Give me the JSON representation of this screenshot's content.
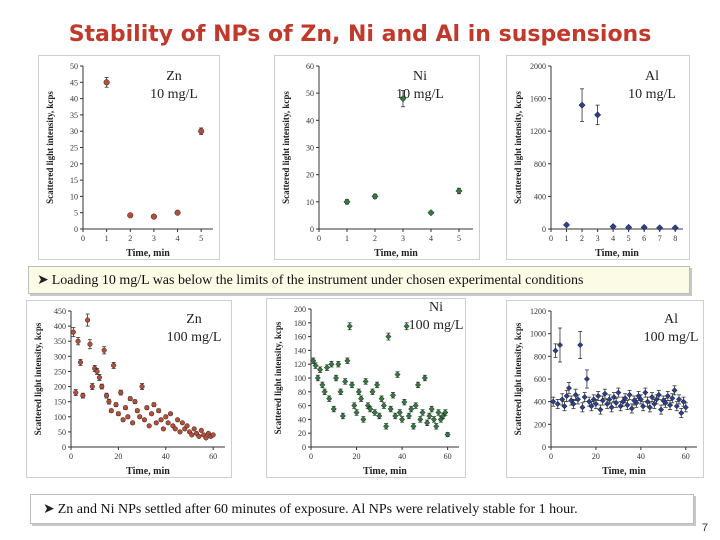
{
  "slide": {
    "title": "Stability of NPs of Zn, Ni and Al in suspensions",
    "note_top": "Loading 10 mg/L was below the limits of the instrument under chosen experimental conditions",
    "note_bottom": "Zn and Ni NPs settled after 60 minutes of exposure. Al NPs were relatively stable for 1 hour.",
    "page_number": "7"
  },
  "colors": {
    "zn_marker": "#b0503c",
    "ni_marker": "#2e7d3a",
    "al_marker": "#2b3f8f",
    "title": "#c0392b"
  },
  "chart_data": [
    {
      "type": "scatter",
      "id": "zn10",
      "label_line1": "Zn",
      "label_line2": "10 mg/L",
      "xlabel": "Time, min",
      "ylabel": "Scattered light intensity, kcps",
      "xlim": [
        0,
        5.5
      ],
      "ylim": [
        0,
        50
      ],
      "xticks": [
        0,
        1,
        2,
        3,
        4,
        5
      ],
      "yticks": [
        0,
        5,
        10,
        15,
        20,
        25,
        30,
        35,
        40,
        45,
        50
      ],
      "marker": "circle",
      "points": [
        {
          "x": 1.0,
          "y": 45,
          "err": 1.5
        },
        {
          "x": 2.0,
          "y": 4.2,
          "err": 0.4
        },
        {
          "x": 3.0,
          "y": 3.8,
          "err": 0.3
        },
        {
          "x": 4.0,
          "y": 5.0,
          "err": 0.4
        },
        {
          "x": 5.0,
          "y": 30,
          "err": 1.0
        }
      ]
    },
    {
      "type": "scatter",
      "id": "ni10",
      "label_line1": "Ni",
      "label_line2": "10 mg/L",
      "xlabel": "Time, min",
      "ylabel": "Scattered light intensity, kcps",
      "xlim": [
        0,
        5.5
      ],
      "ylim": [
        0,
        60
      ],
      "xticks": [
        0,
        1,
        2,
        3,
        4,
        5
      ],
      "yticks": [
        0,
        10,
        20,
        30,
        40,
        50,
        60
      ],
      "marker": "diamond",
      "points": [
        {
          "x": 1.0,
          "y": 10,
          "err": 0.8
        },
        {
          "x": 2.0,
          "y": 12,
          "err": 0.8
        },
        {
          "x": 3.0,
          "y": 48,
          "err": 3.0
        },
        {
          "x": 4.0,
          "y": 6,
          "err": 0.5
        },
        {
          "x": 5.0,
          "y": 14,
          "err": 1.0
        }
      ]
    },
    {
      "type": "scatter",
      "id": "al10",
      "label_line1": "Al",
      "label_line2": "10 mg/L",
      "xlabel": "Time, min",
      "ylabel": "Scattered light intensity, kcps",
      "xlim": [
        0,
        8.5
      ],
      "ylim": [
        0,
        2000
      ],
      "xticks": [
        0,
        1,
        2,
        3,
        4,
        5,
        6,
        7,
        8
      ],
      "yticks": [
        0,
        400,
        800,
        1200,
        1600,
        2000
      ],
      "marker": "diamond",
      "points": [
        {
          "x": 1.0,
          "y": 50,
          "err": 15
        },
        {
          "x": 2.0,
          "y": 1520,
          "err": 200
        },
        {
          "x": 3.0,
          "y": 1400,
          "err": 120
        },
        {
          "x": 4.0,
          "y": 30,
          "err": 10
        },
        {
          "x": 5.0,
          "y": 20,
          "err": 10
        },
        {
          "x": 6.0,
          "y": 20,
          "err": 10
        },
        {
          "x": 7.0,
          "y": 15,
          "err": 10
        },
        {
          "x": 8.0,
          "y": 15,
          "err": 10
        }
      ]
    },
    {
      "type": "scatter",
      "id": "zn100",
      "label_line1": "Zn",
      "label_line2": "100 mg/L",
      "xlabel": "Time, min",
      "ylabel": "Scattered light intensity, kcps",
      "xlim": [
        0,
        65
      ],
      "ylim": [
        0,
        450
      ],
      "xticks": [
        0,
        20,
        40,
        60
      ],
      "yticks": [
        0,
        50,
        100,
        150,
        200,
        250,
        300,
        350,
        400,
        450
      ],
      "marker": "circle",
      "points": [
        {
          "x": 1,
          "y": 380,
          "err": 15
        },
        {
          "x": 2,
          "y": 180,
          "err": 10
        },
        {
          "x": 3,
          "y": 350,
          "err": 12
        },
        {
          "x": 4,
          "y": 280,
          "err": 10
        },
        {
          "x": 5,
          "y": 170,
          "err": 8
        },
        {
          "x": 7,
          "y": 420,
          "err": 20
        },
        {
          "x": 8,
          "y": 340,
          "err": 15
        },
        {
          "x": 9,
          "y": 200,
          "err": 10
        },
        {
          "x": 10,
          "y": 260,
          "err": 10
        },
        {
          "x": 11,
          "y": 250,
          "err": 10
        },
        {
          "x": 12,
          "y": 230,
          "err": 10
        },
        {
          "x": 13,
          "y": 200,
          "err": 8
        },
        {
          "x": 14,
          "y": 320,
          "err": 12
        },
        {
          "x": 15,
          "y": 170,
          "err": 8
        },
        {
          "x": 16,
          "y": 150,
          "err": 8
        },
        {
          "x": 17,
          "y": 120,
          "err": 6
        },
        {
          "x": 18,
          "y": 270,
          "err": 10
        },
        {
          "x": 19,
          "y": 140,
          "err": 6
        },
        {
          "x": 20,
          "y": 110,
          "err": 6
        },
        {
          "x": 21,
          "y": 180,
          "err": 8
        },
        {
          "x": 22,
          "y": 90,
          "err": 5
        },
        {
          "x": 23,
          "y": 130,
          "err": 6
        },
        {
          "x": 24,
          "y": 100,
          "err": 5
        },
        {
          "x": 25,
          "y": 160,
          "err": 6
        },
        {
          "x": 26,
          "y": 80,
          "err": 5
        },
        {
          "x": 27,
          "y": 150,
          "err": 6
        },
        {
          "x": 28,
          "y": 120,
          "err": 6
        },
        {
          "x": 29,
          "y": 100,
          "err": 5
        },
        {
          "x": 30,
          "y": 200,
          "err": 10
        },
        {
          "x": 31,
          "y": 90,
          "err": 5
        },
        {
          "x": 32,
          "y": 130,
          "err": 6
        },
        {
          "x": 33,
          "y": 70,
          "err": 4
        },
        {
          "x": 34,
          "y": 110,
          "err": 5
        },
        {
          "x": 35,
          "y": 140,
          "err": 6
        },
        {
          "x": 36,
          "y": 80,
          "err": 4
        },
        {
          "x": 37,
          "y": 120,
          "err": 6
        },
        {
          "x": 38,
          "y": 90,
          "err": 5
        },
        {
          "x": 39,
          "y": 60,
          "err": 4
        },
        {
          "x": 40,
          "y": 100,
          "err": 5
        },
        {
          "x": 41,
          "y": 80,
          "err": 4
        },
        {
          "x": 42,
          "y": 110,
          "err": 5
        },
        {
          "x": 43,
          "y": 70,
          "err": 4
        },
        {
          "x": 44,
          "y": 60,
          "err": 4
        },
        {
          "x": 45,
          "y": 90,
          "err": 5
        },
        {
          "x": 46,
          "y": 50,
          "err": 4
        },
        {
          "x": 47,
          "y": 80,
          "err": 4
        },
        {
          "x": 48,
          "y": 60,
          "err": 4
        },
        {
          "x": 49,
          "y": 70,
          "err": 4
        },
        {
          "x": 50,
          "y": 50,
          "err": 3
        },
        {
          "x": 51,
          "y": 40,
          "err": 3
        },
        {
          "x": 52,
          "y": 60,
          "err": 3
        },
        {
          "x": 53,
          "y": 45,
          "err": 3
        },
        {
          "x": 54,
          "y": 35,
          "err": 3
        },
        {
          "x": 55,
          "y": 55,
          "err": 3
        },
        {
          "x": 56,
          "y": 40,
          "err": 3
        },
        {
          "x": 57,
          "y": 30,
          "err": 3
        },
        {
          "x": 58,
          "y": 45,
          "err": 3
        },
        {
          "x": 59,
          "y": 35,
          "err": 3
        },
        {
          "x": 60,
          "y": 40,
          "err": 3
        }
      ]
    },
    {
      "type": "scatter",
      "id": "ni100",
      "label_line1": "Ni",
      "label_line2": "100 mg/L",
      "xlabel": "Time, min",
      "ylabel": "Scattered light intensity, kcps",
      "xlim": [
        0,
        65
      ],
      "ylim": [
        0,
        200
      ],
      "xticks": [
        0,
        20,
        40,
        60
      ],
      "yticks": [
        0,
        20,
        40,
        60,
        80,
        100,
        120,
        140,
        160,
        180,
        200
      ],
      "marker": "diamond",
      "points": [
        {
          "x": 1,
          "y": 125,
          "err": 4
        },
        {
          "x": 2,
          "y": 118,
          "err": 4
        },
        {
          "x": 3,
          "y": 100,
          "err": 4
        },
        {
          "x": 4,
          "y": 112,
          "err": 4
        },
        {
          "x": 5,
          "y": 90,
          "err": 4
        },
        {
          "x": 6,
          "y": 80,
          "err": 4
        },
        {
          "x": 7,
          "y": 115,
          "err": 4
        },
        {
          "x": 8,
          "y": 70,
          "err": 4
        },
        {
          "x": 9,
          "y": 120,
          "err": 4
        },
        {
          "x": 10,
          "y": 55,
          "err": 4
        },
        {
          "x": 11,
          "y": 100,
          "err": 4
        },
        {
          "x": 12,
          "y": 120,
          "err": 4
        },
        {
          "x": 13,
          "y": 80,
          "err": 4
        },
        {
          "x": 14,
          "y": 45,
          "err": 4
        },
        {
          "x": 15,
          "y": 95,
          "err": 4
        },
        {
          "x": 16,
          "y": 125,
          "err": 4
        },
        {
          "x": 17,
          "y": 175,
          "err": 5
        },
        {
          "x": 18,
          "y": 90,
          "err": 4
        },
        {
          "x": 19,
          "y": 60,
          "err": 4
        },
        {
          "x": 20,
          "y": 50,
          "err": 4
        },
        {
          "x": 21,
          "y": 80,
          "err": 4
        },
        {
          "x": 22,
          "y": 70,
          "err": 4
        },
        {
          "x": 23,
          "y": 40,
          "err": 4
        },
        {
          "x": 24,
          "y": 95,
          "err": 4
        },
        {
          "x": 25,
          "y": 60,
          "err": 4
        },
        {
          "x": 26,
          "y": 55,
          "err": 4
        },
        {
          "x": 27,
          "y": 80,
          "err": 4
        },
        {
          "x": 28,
          "y": 50,
          "err": 4
        },
        {
          "x": 29,
          "y": 90,
          "err": 4
        },
        {
          "x": 30,
          "y": 45,
          "err": 4
        },
        {
          "x": 31,
          "y": 70,
          "err": 4
        },
        {
          "x": 32,
          "y": 60,
          "err": 4
        },
        {
          "x": 33,
          "y": 30,
          "err": 4
        },
        {
          "x": 34,
          "y": 160,
          "err": 5
        },
        {
          "x": 35,
          "y": 55,
          "err": 4
        },
        {
          "x": 36,
          "y": 75,
          "err": 4
        },
        {
          "x": 37,
          "y": 45,
          "err": 4
        },
        {
          "x": 38,
          "y": 105,
          "err": 4
        },
        {
          "x": 39,
          "y": 50,
          "err": 4
        },
        {
          "x": 40,
          "y": 40,
          "err": 4
        },
        {
          "x": 41,
          "y": 65,
          "err": 4
        },
        {
          "x": 42,
          "y": 175,
          "err": 5
        },
        {
          "x": 43,
          "y": 45,
          "err": 4
        },
        {
          "x": 44,
          "y": 55,
          "err": 4
        },
        {
          "x": 45,
          "y": 30,
          "err": 4
        },
        {
          "x": 46,
          "y": 60,
          "err": 4
        },
        {
          "x": 47,
          "y": 90,
          "err": 4
        },
        {
          "x": 48,
          "y": 40,
          "err": 4
        },
        {
          "x": 49,
          "y": 50,
          "err": 4
        },
        {
          "x": 50,
          "y": 100,
          "err": 4
        },
        {
          "x": 51,
          "y": 35,
          "err": 4
        },
        {
          "x": 52,
          "y": 45,
          "err": 4
        },
        {
          "x": 53,
          "y": 55,
          "err": 4
        },
        {
          "x": 54,
          "y": 40,
          "err": 4
        },
        {
          "x": 55,
          "y": 30,
          "err": 4
        },
        {
          "x": 56,
          "y": 50,
          "err": 4
        },
        {
          "x": 57,
          "y": 40,
          "err": 4
        },
        {
          "x": 58,
          "y": 45,
          "err": 4
        },
        {
          "x": 59,
          "y": 50,
          "err": 4
        },
        {
          "x": 60,
          "y": 18,
          "err": 3
        }
      ]
    },
    {
      "type": "scatter",
      "id": "al100",
      "label_line1": "Al",
      "label_line2": "100 mg/L",
      "xlabel": "Time, min",
      "ylabel": "Scattered light intensity, kcps",
      "xlim": [
        0,
        65
      ],
      "ylim": [
        0,
        1200
      ],
      "xticks": [
        0,
        20,
        40,
        60
      ],
      "yticks": [
        0,
        200,
        400,
        600,
        800,
        1000,
        1200
      ],
      "marker": "diamond",
      "points": [
        {
          "x": 1,
          "y": 400,
          "err": 40
        },
        {
          "x": 2,
          "y": 850,
          "err": 60
        },
        {
          "x": 3,
          "y": 380,
          "err": 40
        },
        {
          "x": 4,
          "y": 900,
          "err": 150
        },
        {
          "x": 5,
          "y": 420,
          "err": 50
        },
        {
          "x": 6,
          "y": 360,
          "err": 40
        },
        {
          "x": 7,
          "y": 450,
          "err": 50
        },
        {
          "x": 8,
          "y": 520,
          "err": 50
        },
        {
          "x": 9,
          "y": 410,
          "err": 40
        },
        {
          "x": 10,
          "y": 380,
          "err": 40
        },
        {
          "x": 11,
          "y": 460,
          "err": 50
        },
        {
          "x": 12,
          "y": 420,
          "err": 40
        },
        {
          "x": 13,
          "y": 900,
          "err": 120
        },
        {
          "x": 14,
          "y": 350,
          "err": 40
        },
        {
          "x": 15,
          "y": 440,
          "err": 40
        },
        {
          "x": 16,
          "y": 600,
          "err": 80
        },
        {
          "x": 17,
          "y": 400,
          "err": 40
        },
        {
          "x": 18,
          "y": 360,
          "err": 40
        },
        {
          "x": 19,
          "y": 420,
          "err": 40
        },
        {
          "x": 20,
          "y": 380,
          "err": 40
        },
        {
          "x": 21,
          "y": 450,
          "err": 40
        },
        {
          "x": 22,
          "y": 330,
          "err": 40
        },
        {
          "x": 23,
          "y": 410,
          "err": 40
        },
        {
          "x": 24,
          "y": 470,
          "err": 40
        },
        {
          "x": 25,
          "y": 380,
          "err": 40
        },
        {
          "x": 26,
          "y": 420,
          "err": 40
        },
        {
          "x": 27,
          "y": 350,
          "err": 40
        },
        {
          "x": 28,
          "y": 440,
          "err": 40
        },
        {
          "x": 29,
          "y": 390,
          "err": 40
        },
        {
          "x": 30,
          "y": 480,
          "err": 40
        },
        {
          "x": 31,
          "y": 360,
          "err": 40
        },
        {
          "x": 32,
          "y": 400,
          "err": 40
        },
        {
          "x": 33,
          "y": 430,
          "err": 40
        },
        {
          "x": 34,
          "y": 370,
          "err": 40
        },
        {
          "x": 35,
          "y": 460,
          "err": 40
        },
        {
          "x": 36,
          "y": 340,
          "err": 40
        },
        {
          "x": 37,
          "y": 410,
          "err": 40
        },
        {
          "x": 38,
          "y": 390,
          "err": 40
        },
        {
          "x": 39,
          "y": 450,
          "err": 40
        },
        {
          "x": 40,
          "y": 420,
          "err": 40
        },
        {
          "x": 41,
          "y": 360,
          "err": 40
        },
        {
          "x": 42,
          "y": 480,
          "err": 40
        },
        {
          "x": 43,
          "y": 400,
          "err": 40
        },
        {
          "x": 44,
          "y": 350,
          "err": 40
        },
        {
          "x": 45,
          "y": 440,
          "err": 40
        },
        {
          "x": 46,
          "y": 380,
          "err": 40
        },
        {
          "x": 47,
          "y": 420,
          "err": 40
        },
        {
          "x": 48,
          "y": 460,
          "err": 40
        },
        {
          "x": 49,
          "y": 330,
          "err": 40
        },
        {
          "x": 50,
          "y": 410,
          "err": 40
        },
        {
          "x": 51,
          "y": 390,
          "err": 40
        },
        {
          "x": 52,
          "y": 450,
          "err": 40
        },
        {
          "x": 53,
          "y": 370,
          "err": 40
        },
        {
          "x": 54,
          "y": 430,
          "err": 40
        },
        {
          "x": 55,
          "y": 500,
          "err": 40
        },
        {
          "x": 56,
          "y": 360,
          "err": 40
        },
        {
          "x": 57,
          "y": 420,
          "err": 40
        },
        {
          "x": 58,
          "y": 300,
          "err": 40
        },
        {
          "x": 59,
          "y": 400,
          "err": 40
        },
        {
          "x": 60,
          "y": 350,
          "err": 40
        }
      ]
    }
  ]
}
